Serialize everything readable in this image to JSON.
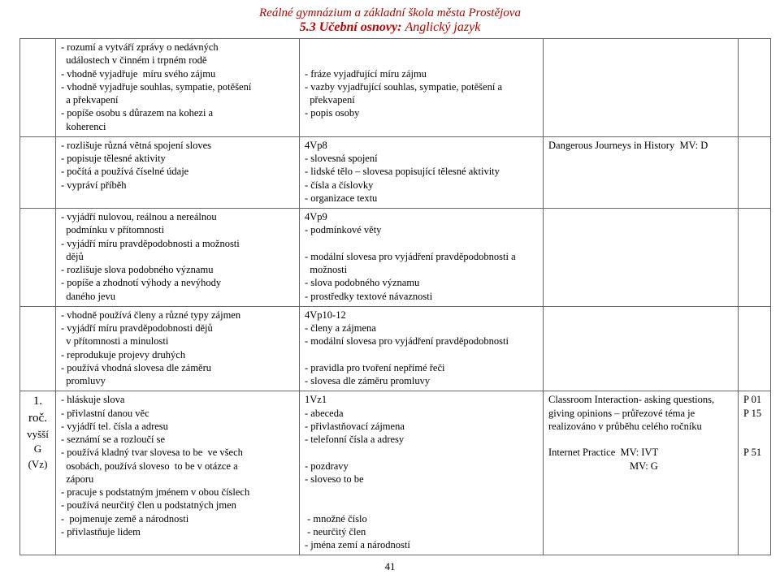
{
  "header": {
    "school": "Reálné gymnázium a základní škola města Prostějova",
    "section_num": "5.3 Učební osnovy:",
    "section_subj": "Anglický jazyk"
  },
  "colors": {
    "header_red": "#c00000",
    "border": "#666666",
    "bg": "#ffffff",
    "text": "#000000"
  },
  "rows": [
    {
      "c0": "",
      "c1": "- rozumí a vytváří zprávy o nedávných\n  událostech v činném i trpném rodě\n- vhodně vyjadřuje  míru svého zájmu\n- vhodně vyjadřuje souhlas, sympatie, potěšení\n  a překvapení\n- popíše osobu s důrazem na kohezi a\n  koherenci",
      "c2": "\n\n- fráze vyjadřující míru zájmu\n- vazby vyjadřující souhlas, sympatie, potěšení a\n  překvapení\n- popis osoby",
      "c3": "",
      "c4": ""
    },
    {
      "c0": "",
      "c1": "- rozlišuje různá větná spojení sloves\n- popisuje tělesné aktivity\n- počítá a používá číselné údaje\n- vypráví příběh",
      "c2": "4Vp8\n- slovesná spojení\n- lidské tělo – slovesa popisující tělesné aktivity\n- čísla a číslovky\n- organizace textu",
      "c3": "Dangerous Journeys in History  MV: D",
      "c4": ""
    },
    {
      "c0": "",
      "c1": "- vyjádří nulovou, reálnou a nereálnou\n  podmínku v přítomnosti\n- vyjádří míru pravděpodobnosti a možnosti\n  dějů\n- rozlišuje slova podobného významu\n- popíše a zhodnotí výhody a nevýhody\n  daného jevu",
      "c2": "4Vp9\n- podmínkové věty\n\n- modální slovesa pro vyjádření pravděpodobnosti a\n  možnosti\n- slova podobného významu\n- prostředky textové návaznosti",
      "c3": "",
      "c4": ""
    },
    {
      "c0": "",
      "c1": "- vhodně používá členy a různé typy zájmen\n- vyjádří míru pravděpodobnosti dějů\n  v přítomnosti a minulosti\n- reprodukuje projevy druhých\n- používá vhodná slovesa dle záměru\n  promluvy",
      "c2": "4Vp10-12\n- členy a zájmena\n- modální slovesa pro vyjádření pravděpodobnosti\n\n- pravidla pro tvoření nepřímé řeči\n- slovesa dle záměru promluvy",
      "c3": "",
      "c4": ""
    },
    {
      "c0_html": "<div class='rowlabel'><span class='big'>1.</span><br><span class='big'>roč.</span><br>vyšší<br>G<br>(Vz)</div>",
      "c1": "- hláskuje slova\n- přivlastní danou věc\n- vyjádří tel. čísla a adresu\n- seznámí se a rozloučí se\n- používá kladný tvar slovesa to be  ve všech\n  osobách, používá sloveso  to be v otázce a\n  záporu\n- pracuje s podstatným jménem v obou číslech\n- používá neurčitý člen u podstatných jmen\n-  pojmenuje země a národnosti\n- přivlastňuje lidem",
      "c2": "1Vz1\n- abeceda\n- přivlastňovací zájmena\n- telefonní čísla a adresy\n\n- pozdravy\n- sloveso to be\n\n\n - množné číslo\n - neurčitý člen\n- jména zemí a národností",
      "c3": "Classroom Interaction- asking questions,\ngiving opinions – průřezové téma je\nrealizováno v průběhu celého ročníku\n\nInternet Practice  MV: IVT\n                                MV: G",
      "c4": "P 01\nP 15\n\n\nP 51"
    }
  ],
  "page_number": "41"
}
